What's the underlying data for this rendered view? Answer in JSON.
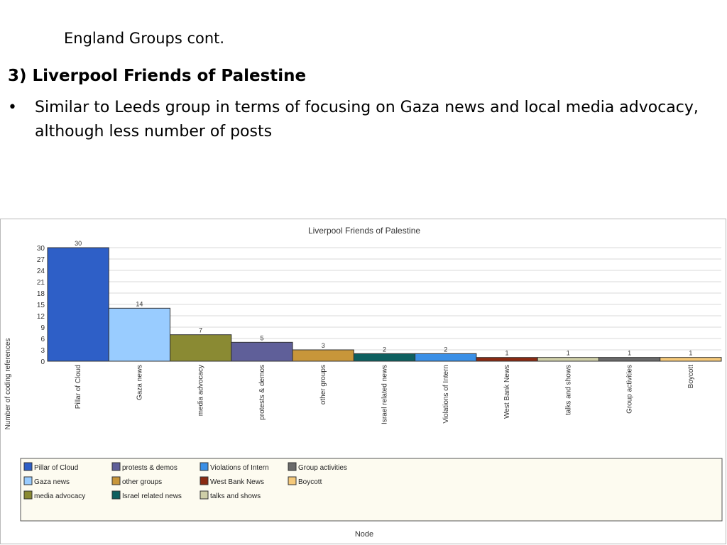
{
  "slide": {
    "subtitle": "England Groups cont.",
    "heading": "3) Liverpool Friends of Palestine",
    "bullet_symbol": "•",
    "bullet_text": "Similar to Leeds group in terms of focusing on Gaza news and local media advocacy, although less number of posts"
  },
  "chart_data": {
    "type": "bar",
    "title": "Liverpool Friends of Palestine",
    "xlabel": "Node",
    "ylabel": "Number of coding references",
    "ylim": [
      0,
      30
    ],
    "yticks": [
      0,
      3,
      6,
      9,
      12,
      15,
      18,
      21,
      24,
      27,
      30
    ],
    "grid": true,
    "legend_position": "bottom",
    "categories": [
      "Pillar of Cloud",
      "Gaza news",
      "media advocacy",
      "protests & demos",
      "other groups",
      "Israel related news",
      "Violations of Intern",
      "West Bank News",
      "talks and shows",
      "Group activities",
      "Boycott"
    ],
    "values": [
      30,
      14,
      7,
      5,
      3,
      2,
      2,
      1,
      1,
      1,
      1
    ],
    "colors": [
      "#2e5fc7",
      "#99ccff",
      "#8a8a33",
      "#5f5f99",
      "#c8963a",
      "#0d5f5f",
      "#3a8fe6",
      "#8a2a12",
      "#cfcfa8",
      "#6a6a6a",
      "#f5c97a"
    ]
  }
}
